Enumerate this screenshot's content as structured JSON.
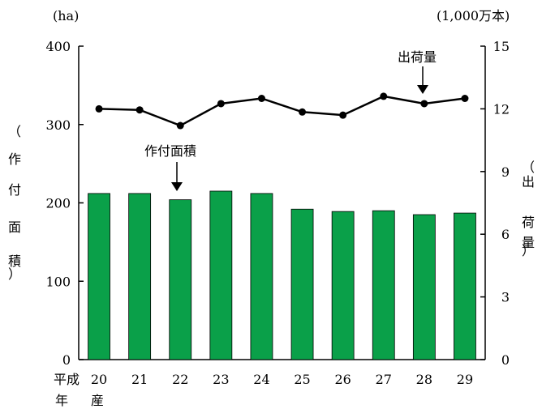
{
  "chart_data": {
    "type": "bar+line",
    "categories": [
      "20",
      "21",
      "22",
      "23",
      "24",
      "25",
      "26",
      "27",
      "28",
      "29"
    ],
    "x_prefix": "平成",
    "x_suffix_lines": [
      "年",
      "産"
    ],
    "series": [
      {
        "name": "作付面積",
        "type": "bar",
        "axis": "left",
        "color": "#0aa049",
        "values": [
          212,
          212,
          204,
          215,
          212,
          192,
          189,
          190,
          185,
          187
        ]
      },
      {
        "name": "出荷量",
        "type": "line",
        "axis": "right",
        "color": "#000000",
        "values": [
          12.0,
          11.95,
          11.2,
          12.25,
          12.5,
          11.85,
          11.7,
          12.6,
          12.25,
          12.5
        ]
      }
    ],
    "left_axis": {
      "unit": "(ha)",
      "label_chars": [
        "（",
        "作",
        "付",
        "面",
        "積",
        "）"
      ],
      "ylim": [
        0,
        400
      ],
      "ticks": [
        0,
        100,
        200,
        300,
        400
      ]
    },
    "right_axis": {
      "unit": "(1,000万本)",
      "label_chars": [
        "（",
        "出",
        "荷",
        "量",
        "）"
      ],
      "ylim": [
        0,
        15
      ],
      "ticks": [
        0,
        3,
        6,
        9,
        12,
        15
      ]
    },
    "grid": false,
    "annotations": [
      {
        "text": "作付面積",
        "target_series": "作付面積",
        "target_index": 2
      },
      {
        "text": "出荷量",
        "target_series": "出荷量",
        "target_index": 8
      }
    ]
  }
}
